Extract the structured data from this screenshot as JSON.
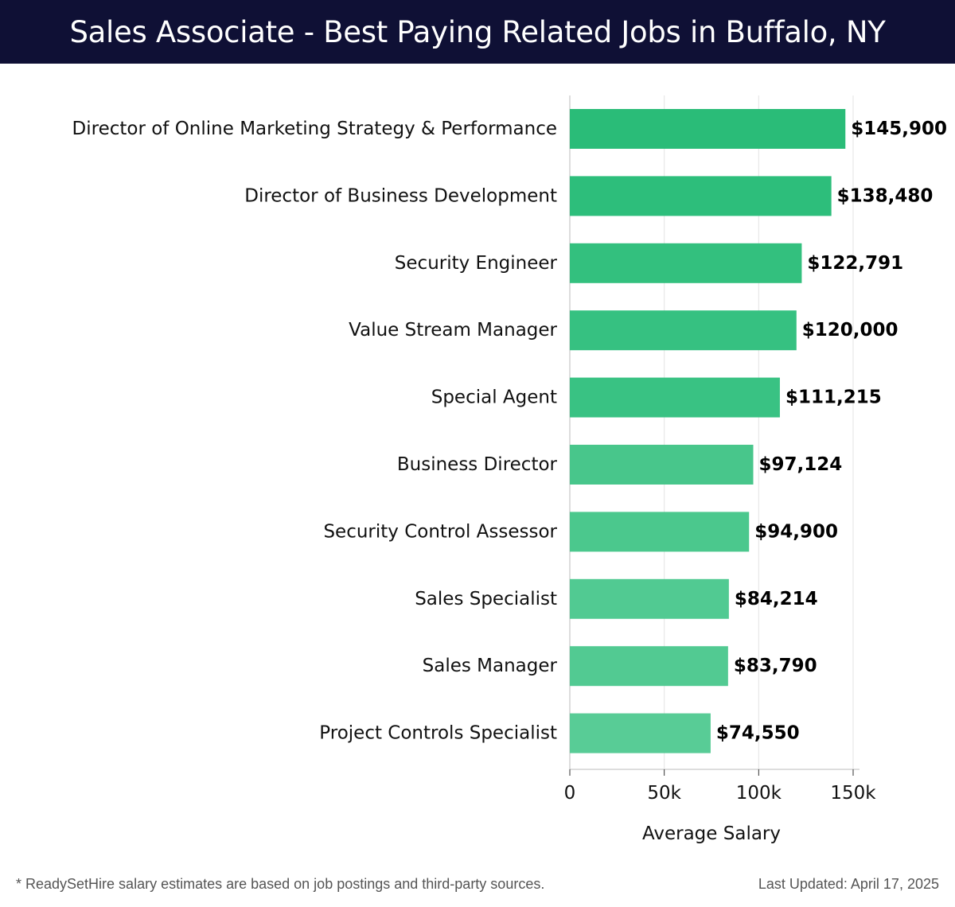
{
  "header": {
    "title": "Sales Associate - Best Paying Related Jobs in Buffalo, NY"
  },
  "chart_data": {
    "type": "bar",
    "orientation": "horizontal",
    "categories": [
      "Director of Online Marketing Strategy & Performance",
      "Director of Business Development",
      "Security Engineer",
      "Value Stream Manager",
      "Special Agent",
      "Business Director",
      "Security Control Assessor",
      "Sales Specialist",
      "Sales Manager",
      "Project Controls Specialist"
    ],
    "values": [
      145900,
      138480,
      122791,
      120000,
      111215,
      97124,
      94900,
      84214,
      83790,
      74550
    ],
    "value_labels": [
      "$145,900",
      "$138,480",
      "$122,791",
      "$120,000",
      "$111,215",
      "$97,124",
      "$94,900",
      "$84,214",
      "$83,790",
      "$74,550"
    ],
    "bar_colors": [
      "#2abc78",
      "#2dbe7b",
      "#33c07e",
      "#36c181",
      "#39c283",
      "#48c68b",
      "#4bc88d",
      "#51ca92",
      "#52ca92",
      "#58cc96"
    ],
    "xlabel": "Average Salary",
    "ylabel": "",
    "xlim": [
      0,
      150000
    ],
    "xticks": [
      0,
      50000,
      100000,
      150000
    ],
    "xtick_labels": [
      "0",
      "50k",
      "100k",
      "150k"
    ],
    "grid": "vertical"
  },
  "footer": {
    "note": "* ReadySetHire salary estimates are based on job postings and third-party sources.",
    "updated": "Last Updated: April 17, 2025"
  }
}
